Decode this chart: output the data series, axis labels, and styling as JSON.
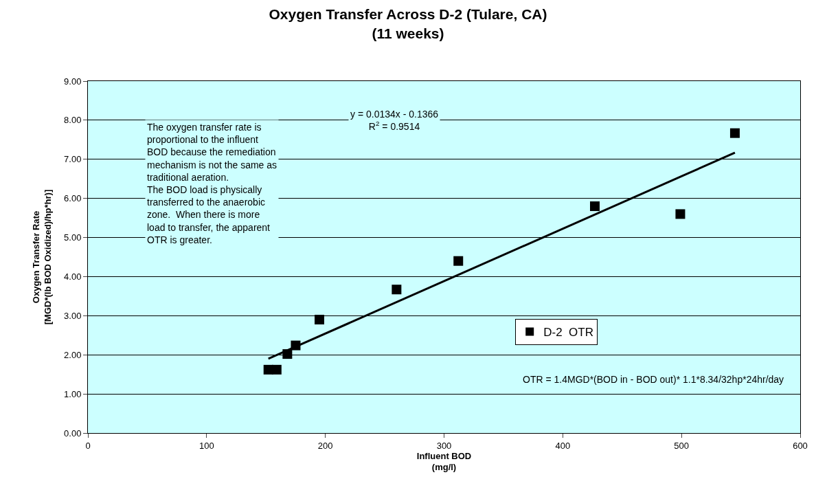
{
  "chart_data": {
    "type": "scatter",
    "title": "Oxygen Transfer Across D-2 (Tulare, CA)\n(11 weeks)",
    "xlabel": "Influent BOD\n(mg/l)",
    "ylabel": "Oxygen Transfer Rate\n[MGD*(lb BOD Oxidized)/hp*hr)]",
    "series": [
      {
        "name": "D-2  OTR",
        "color": "#000000",
        "marker": "square",
        "x": [
          152,
          159,
          168,
          175,
          195,
          260,
          312,
          427,
          499,
          545
        ],
        "values": [
          1.62,
          1.62,
          2.02,
          2.24,
          2.9,
          3.67,
          4.4,
          5.8,
          5.6,
          7.67
        ]
      },
      {
        "color": "#000000",
        "type": "line",
        "marker": "none",
        "x": [
          152,
          545
        ],
        "values": [
          1.9,
          7.17
        ]
      }
    ],
    "xlim": [
      0,
      600
    ],
    "xticks": [
      0,
      100,
      200,
      300,
      400,
      500,
      600
    ],
    "ylim": [
      0,
      9
    ],
    "yticks": [
      {
        "value": 0,
        "label": "0.00"
      },
      {
        "value": 1,
        "label": "1.00"
      },
      {
        "value": 2,
        "label": "2.00"
      },
      {
        "value": 3,
        "label": "3.00"
      },
      {
        "value": 4,
        "label": "4.00"
      },
      {
        "value": 5,
        "label": "5.00"
      },
      {
        "value": 6,
        "label": "6.00"
      },
      {
        "value": 7,
        "label": "7.00"
      },
      {
        "value": 8,
        "label": "8.00"
      },
      {
        "value": 9,
        "label": "9.00"
      }
    ],
    "grid": "y",
    "legend": "bottom",
    "annotations": [
      "y = 0.0134x - 0.1366\nR$^{2}$ = 0.9514",
      "The oxygen transfer rate is\nproportional to the influent\nBOD because the remediation\nmechanism is not the same as\ntraditional aeration.\nThe BOD load is physically\ntransferred to the anaerobic\nzone.  When there is more\nload to transfer, the apparent\nOTR is greater.",
      "OTR = 1.4MGD*(BOD in - BOD out)* 1.1*8.34/32hp*24hr/day"
    ]
  }
}
